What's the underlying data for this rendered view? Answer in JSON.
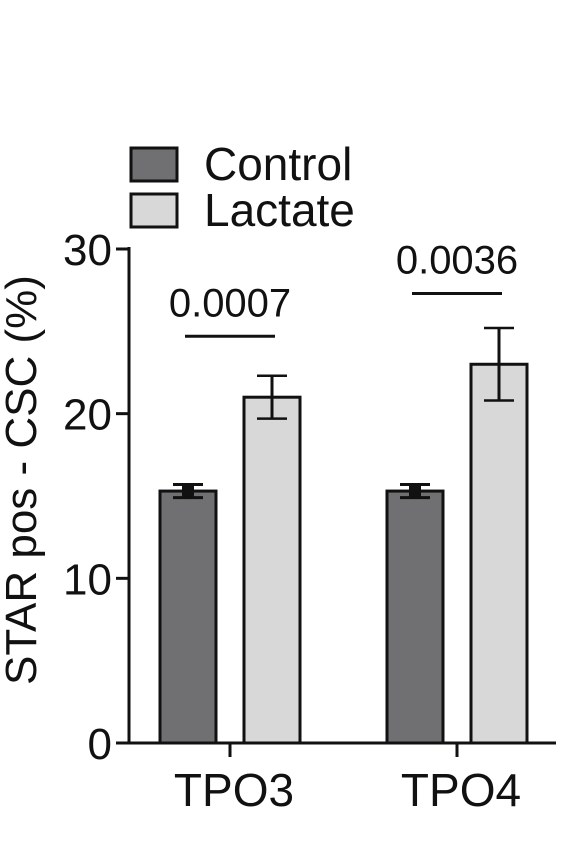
{
  "chart_data": {
    "type": "bar",
    "categories": [
      "TPO3",
      "TPO4"
    ],
    "series": [
      {
        "name": "Control",
        "values": [
          15.3,
          15.3
        ],
        "errors": [
          0.4,
          0.4
        ],
        "color": "#707072"
      },
      {
        "name": "Lactate",
        "values": [
          21.0,
          23.0
        ],
        "errors": [
          1.3,
          2.2
        ],
        "color": "#d8d8d8"
      }
    ],
    "annotations": [
      {
        "category": "TPO3",
        "text": "0.0007",
        "y": 24.7
      },
      {
        "category": "TPO4",
        "text": "0.0036",
        "y": 27.3
      }
    ],
    "xlabel": "",
    "ylabel": "STAR pos - CSC (%)",
    "ylim": [
      0,
      30
    ],
    "yticks": [
      "0",
      "10",
      "20",
      "30"
    ],
    "legend_position": "top-left",
    "grid": false
  }
}
